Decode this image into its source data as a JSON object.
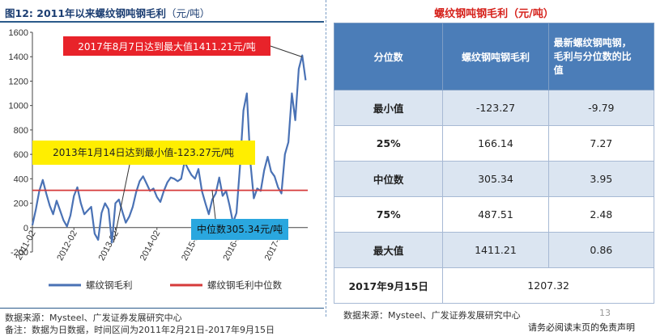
{
  "left_panel": {
    "title": "图12:  2011年以来螺纹钢吨钢毛利",
    "title_unit": "（元/吨）",
    "source": "数据来源：Mysteel、广发证券发展研究中心",
    "note": "备注：数据为日数据，时间区间为2011年2月21日-2017年9月15日"
  },
  "chart_data": {
    "type": "line",
    "title": "2011年以来螺纹钢吨钢毛利",
    "ylabel": "",
    "xlabel": "",
    "ylim": [
      -200,
      1600
    ],
    "yticks": [
      -200,
      0,
      200,
      400,
      600,
      800,
      1000,
      1200,
      1400,
      1600
    ],
    "xticks": [
      "2011-02",
      "2012-02",
      "2013-02",
      "2014-02",
      "2015-02",
      "2016-02",
      "2017-02"
    ],
    "grid": false,
    "legend": "bottom",
    "series": [
      {
        "name": "螺纹钢毛利",
        "color": "#4a72b5",
        "x": [
          "2011-02",
          "2011-03",
          "2011-04",
          "2011-05",
          "2011-06",
          "2011-07",
          "2011-08",
          "2011-09",
          "2011-10",
          "2011-11",
          "2011-12",
          "2012-01",
          "2012-02",
          "2012-03",
          "2012-04",
          "2012-05",
          "2012-06",
          "2012-07",
          "2012-08",
          "2012-09",
          "2012-10",
          "2012-11",
          "2012-12",
          "2013-01",
          "2013-02",
          "2013-03",
          "2013-04",
          "2013-05",
          "2013-06",
          "2013-07",
          "2013-08",
          "2013-09",
          "2013-10",
          "2013-11",
          "2013-12",
          "2014-01",
          "2014-02",
          "2014-03",
          "2014-04",
          "2014-05",
          "2014-06",
          "2014-07",
          "2014-08",
          "2014-09",
          "2014-10",
          "2014-11",
          "2014-12",
          "2015-01",
          "2015-02",
          "2015-03",
          "2015-04",
          "2015-05",
          "2015-06",
          "2015-07",
          "2015-08",
          "2015-09",
          "2015-10",
          "2015-11",
          "2015-12",
          "2016-01",
          "2016-02",
          "2016-03",
          "2016-04",
          "2016-05",
          "2016-06",
          "2016-07",
          "2016-08",
          "2016-09",
          "2016-10",
          "2016-11",
          "2016-12",
          "2017-01",
          "2017-02",
          "2017-03",
          "2017-04",
          "2017-05",
          "2017-06",
          "2017-07",
          "2017-08",
          "2017-09"
        ],
        "values": [
          20,
          150,
          300,
          390,
          280,
          180,
          110,
          220,
          140,
          60,
          10,
          100,
          260,
          330,
          200,
          110,
          140,
          170,
          -50,
          -100,
          120,
          200,
          150,
          -123,
          200,
          230,
          130,
          40,
          90,
          170,
          290,
          380,
          420,
          360,
          300,
          320,
          250,
          210,
          300,
          370,
          410,
          400,
          380,
          400,
          540,
          480,
          430,
          400,
          480,
          300,
          200,
          110,
          230,
          280,
          410,
          260,
          300,
          180,
          40,
          120,
          500,
          960,
          1100,
          540,
          240,
          320,
          300,
          470,
          580,
          460,
          420,
          330,
          280,
          600,
          700,
          1100,
          880,
          1300,
          1411,
          1207
        ]
      },
      {
        "name": "螺纹钢毛利中位数",
        "color": "#d63a3a",
        "values": [
          305.34
        ]
      }
    ],
    "annotations": [
      {
        "text": "2017年8月7日达到最大值1411.21元/吨",
        "x": "2017-08",
        "y": 1411.21
      },
      {
        "text": "2013年1月14日达到最小值-123.27元/吨",
        "x": "2013-01",
        "y": -123.27
      },
      {
        "text": "中位数305.34元/吨",
        "y": 305.34
      }
    ]
  },
  "table": {
    "title": "螺纹钢吨钢毛利（元/吨）",
    "headers": [
      "分位数",
      "螺纹钢吨钢毛利",
      "最新螺纹钢吨钢，毛利与分位数的比值"
    ],
    "header3_lines": [
      "最新螺纹钢吨钢，",
      "毛利与分位数的比",
      "值"
    ],
    "rows": [
      {
        "label": "最小值",
        "value": "-123.27",
        "ratio": "-9.79"
      },
      {
        "label": "25%",
        "value": "166.14",
        "ratio": "7.27"
      },
      {
        "label": "中位数",
        "value": "305.34",
        "ratio": "3.95"
      },
      {
        "label": "75%",
        "value": "487.51",
        "ratio": "2.48"
      },
      {
        "label": "最大值",
        "value": "1411.21",
        "ratio": "0.86"
      }
    ],
    "latest": {
      "label": "2017年9月15日",
      "value": "1207.32"
    },
    "source": "数据来源：Mysteel、广发证券发展研究中心"
  },
  "footer": {
    "page": "13",
    "disclaimer": "请务必阅读末页的免责声明"
  }
}
